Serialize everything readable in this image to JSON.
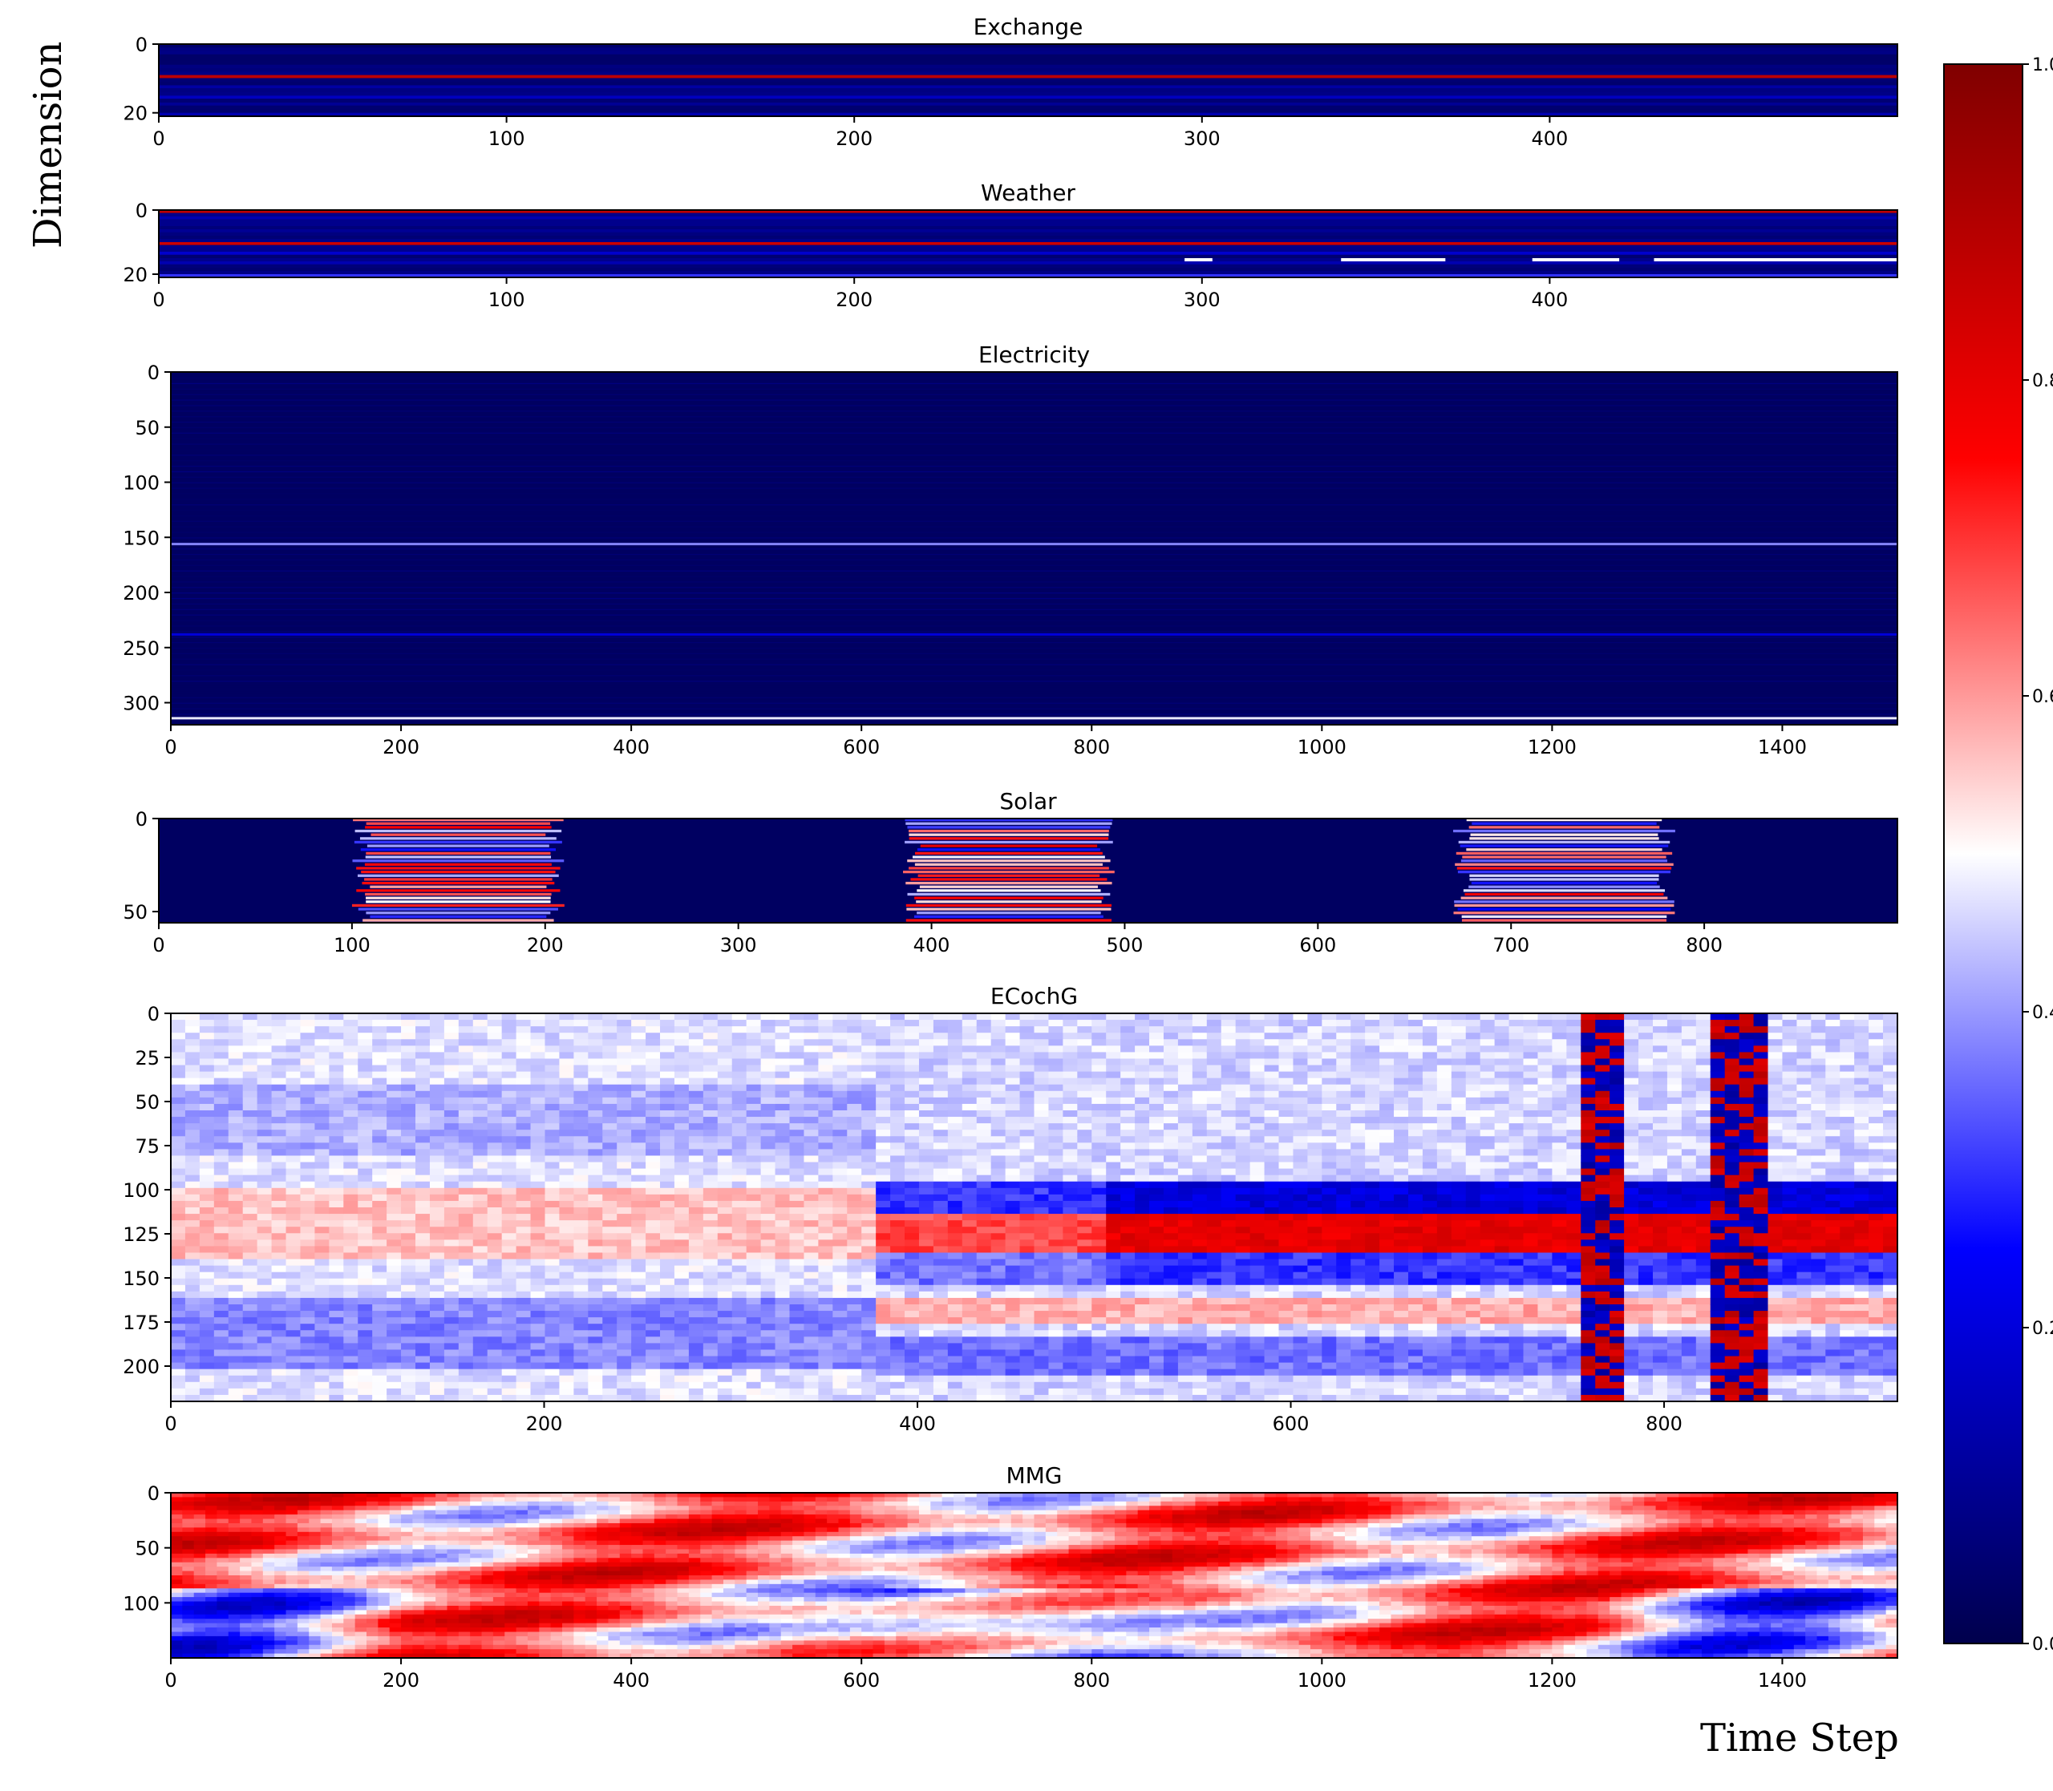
{
  "figure": {
    "ylabel": "Dimension",
    "xlabel": "Time Step"
  },
  "chart_data": [
    {
      "type": "heatmap",
      "title": "Exchange",
      "xlim": [
        0,
        500
      ],
      "ylim": [
        21,
        0
      ],
      "xticks": [
        0,
        100,
        200,
        300,
        400
      ],
      "yticks": [
        0,
        20
      ],
      "bands": [
        {
          "y": 9,
          "value": 0.88
        },
        {
          "y": 12,
          "value": 0.12
        },
        {
          "y": 15,
          "value": 0.16
        },
        {
          "y": 17,
          "value": 0.1
        },
        {
          "y": 20,
          "value": 0.14
        }
      ],
      "base": 0.04
    },
    {
      "type": "heatmap",
      "title": "Weather",
      "xlim": [
        0,
        500
      ],
      "ylim": [
        21,
        0
      ],
      "xticks": [
        0,
        100,
        200,
        300,
        400
      ],
      "yticks": [
        0,
        20
      ],
      "bands": [
        {
          "y": 0,
          "value": 0.88
        },
        {
          "y": 10,
          "value": 0.85
        },
        {
          "y": 2,
          "value": 0.14
        },
        {
          "y": 6,
          "value": 0.1
        },
        {
          "y": 13,
          "value": 0.18
        },
        {
          "y": 16,
          "value": 0.14
        },
        {
          "y": 20,
          "value": 0.3
        }
      ],
      "base": 0.05
    },
    {
      "type": "heatmap",
      "title": "Electricity",
      "xlim": [
        0,
        1500
      ],
      "ylim": [
        320,
        0
      ],
      "xticks": [
        0,
        200,
        400,
        600,
        800,
        1000,
        1200,
        1400
      ],
      "yticks": [
        0,
        50,
        100,
        150,
        200,
        250,
        300
      ],
      "bands": [
        {
          "y": 155,
          "value": 0.38
        },
        {
          "y": 237,
          "value": 0.2
        },
        {
          "y": 313,
          "value": 0.48
        }
      ],
      "base": 0.03
    },
    {
      "type": "heatmap",
      "title": "Solar",
      "xlim": [
        0,
        900
      ],
      "ylim": [
        56,
        0
      ],
      "xticks": [
        0,
        100,
        200,
        300,
        400,
        500,
        600,
        700,
        800
      ],
      "yticks": [
        0,
        50
      ],
      "active_periods": [
        [
          100,
          210
        ],
        [
          385,
          495
        ],
        [
          670,
          785
        ]
      ],
      "base": 0.03
    },
    {
      "type": "heatmap",
      "title": "ECochG",
      "xlim": [
        0,
        925
      ],
      "ylim": [
        220,
        0
      ],
      "xticks": [
        0,
        200,
        400,
        600,
        800
      ],
      "yticks": [
        0,
        25,
        50,
        75,
        100,
        125,
        150,
        175,
        200
      ],
      "base": 0.45
    },
    {
      "type": "heatmap",
      "title": "MMG",
      "xlim": [
        0,
        1500
      ],
      "ylim": [
        150,
        0
      ],
      "xticks": [
        0,
        200,
        400,
        600,
        800,
        1000,
        1200,
        1400
      ],
      "yticks": [
        0,
        50,
        100
      ],
      "base": 0.62
    }
  ],
  "colorbar": {
    "ticks": [
      "0.0",
      "0.2",
      "0.4",
      "0.6",
      "0.8",
      "1.0"
    ],
    "stops": [
      "#00004c",
      "#0000ff",
      "#ffffff",
      "#ff0000",
      "#800000"
    ]
  }
}
